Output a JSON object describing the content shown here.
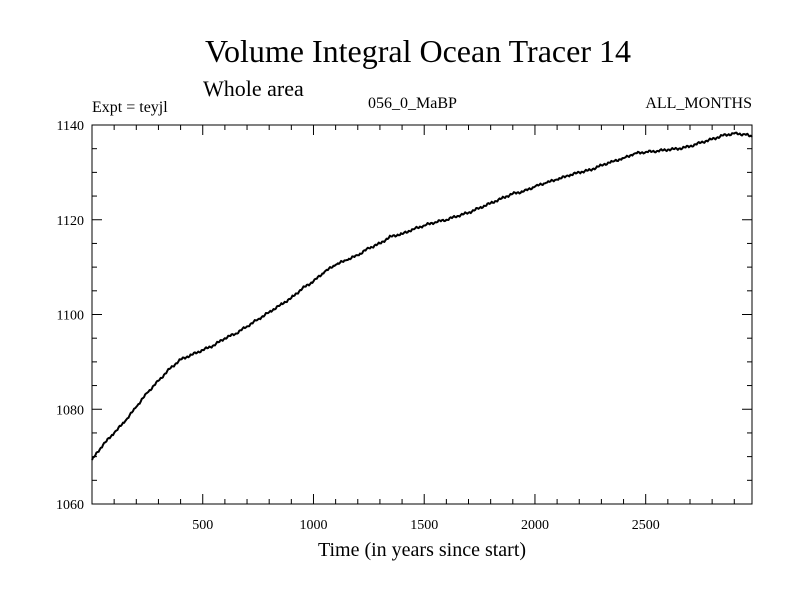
{
  "chart_data": {
    "type": "line",
    "title": "Volume Integral Ocean Tracer 14",
    "subtitle": "Whole area",
    "expt_label": "Expt = teyjl",
    "run_label": "056_0_MaBP",
    "period_label": "ALL_MONTHS",
    "xlabel": "Time (in years since start)",
    "ylabel": "",
    "xlim": [
      0,
      2980
    ],
    "ylim": [
      1060,
      1140
    ],
    "xticks": [
      500,
      1000,
      1500,
      2000,
      2500
    ],
    "yticks": [
      1060,
      1080,
      1100,
      1120,
      1140
    ],
    "grid": false,
    "series": [
      {
        "name": "Volume Integral Ocean Tracer 14",
        "color": "#000000",
        "x": [
          0,
          50,
          100,
          150,
          200,
          250,
          300,
          350,
          400,
          450,
          500,
          550,
          600,
          650,
          700,
          750,
          800,
          850,
          900,
          950,
          1000,
          1050,
          1100,
          1150,
          1200,
          1250,
          1300,
          1350,
          1400,
          1450,
          1500,
          1550,
          1600,
          1650,
          1700,
          1750,
          1800,
          1850,
          1900,
          1950,
          2000,
          2050,
          2100,
          2150,
          2200,
          2250,
          2300,
          2350,
          2400,
          2450,
          2500,
          2550,
          2600,
          2650,
          2700,
          2750,
          2800,
          2850,
          2900,
          2950,
          2980
        ],
        "y": [
          1069.3,
          1072.5,
          1075.0,
          1077.5,
          1080.5,
          1083.5,
          1086.0,
          1088.5,
          1090.5,
          1091.5,
          1092.5,
          1093.5,
          1095.0,
          1096.0,
          1097.5,
          1099.0,
          1100.5,
          1102.0,
          1103.5,
          1105.5,
          1107.0,
          1109.0,
          1110.5,
          1111.5,
          1112.5,
          1114.0,
          1115.0,
          1116.5,
          1117.0,
          1118.0,
          1118.8,
          1119.5,
          1120.0,
          1120.8,
          1121.5,
          1122.5,
          1123.5,
          1124.5,
          1125.5,
          1126.0,
          1127.0,
          1127.8,
          1128.5,
          1129.3,
          1130.0,
          1130.5,
          1131.5,
          1132.3,
          1133.0,
          1134.0,
          1134.3,
          1134.5,
          1134.8,
          1135.0,
          1135.5,
          1136.3,
          1137.0,
          1137.8,
          1138.2,
          1138.0,
          1137.5
        ]
      }
    ]
  }
}
